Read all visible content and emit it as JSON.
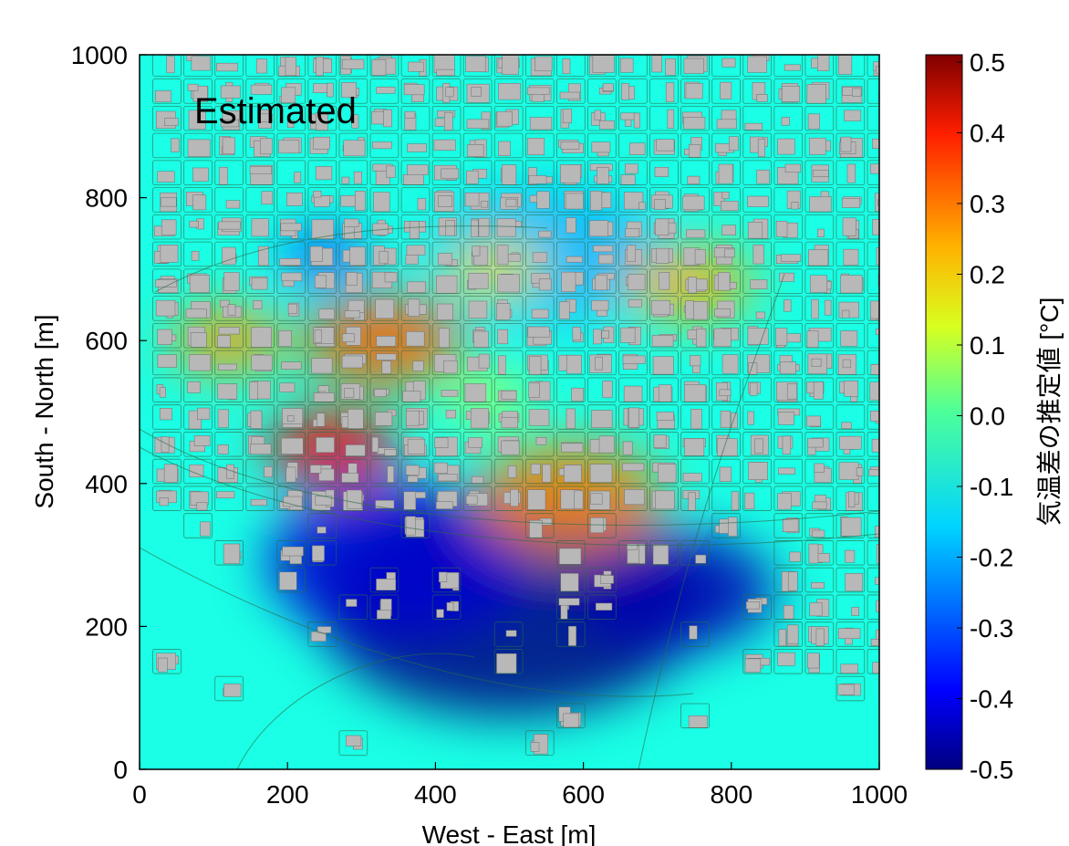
{
  "chart_data": {
    "type": "heatmap",
    "panel_label": "Estimated",
    "xlabel": "West - East [m]",
    "ylabel": "South - North [m]",
    "xlim": [
      0,
      1000
    ],
    "ylim": [
      0,
      1000
    ],
    "x_ticks": [
      0,
      200,
      400,
      600,
      800,
      1000
    ],
    "y_ticks": [
      0,
      200,
      400,
      600,
      800,
      1000
    ],
    "colorbar": {
      "label": "気温差の推定値 [°C]",
      "range": [
        -0.5,
        0.5
      ],
      "ticks": [
        "0.5",
        "0.4",
        "0.3",
        "0.2",
        "0.1",
        "0.0",
        "-0.1",
        "-0.2",
        "-0.3",
        "-0.4",
        "-0.5"
      ],
      "colormap": "jet"
    },
    "background_value": -0.1,
    "colors": {
      "building": "#b8b8b8",
      "outline": "#2a6a4a"
    },
    "hotspots": [
      {
        "x": 330,
        "y": 600,
        "r": 110,
        "value": 0.28
      },
      {
        "x": 260,
        "y": 450,
        "r": 90,
        "value": 0.38
      },
      {
        "x": 120,
        "y": 600,
        "r": 80,
        "value": 0.22
      },
      {
        "x": 580,
        "y": 380,
        "r": 130,
        "value": 0.25
      },
      {
        "x": 740,
        "y": 680,
        "r": 90,
        "value": 0.2
      },
      {
        "x": 480,
        "y": 700,
        "r": 70,
        "value": 0.15
      },
      {
        "x": 470,
        "y": 520,
        "r": 60,
        "value": 0.05
      }
    ],
    "coldspots": [
      {
        "x": 500,
        "y": 230,
        "r": 260,
        "value": -0.5
      },
      {
        "x": 350,
        "y": 290,
        "r": 180,
        "value": -0.42
      },
      {
        "x": 720,
        "y": 250,
        "r": 140,
        "value": -0.45
      },
      {
        "x": 550,
        "y": 720,
        "r": 160,
        "value": -0.2
      },
      {
        "x": 250,
        "y": 720,
        "r": 60,
        "value": -0.3
      }
    ]
  }
}
